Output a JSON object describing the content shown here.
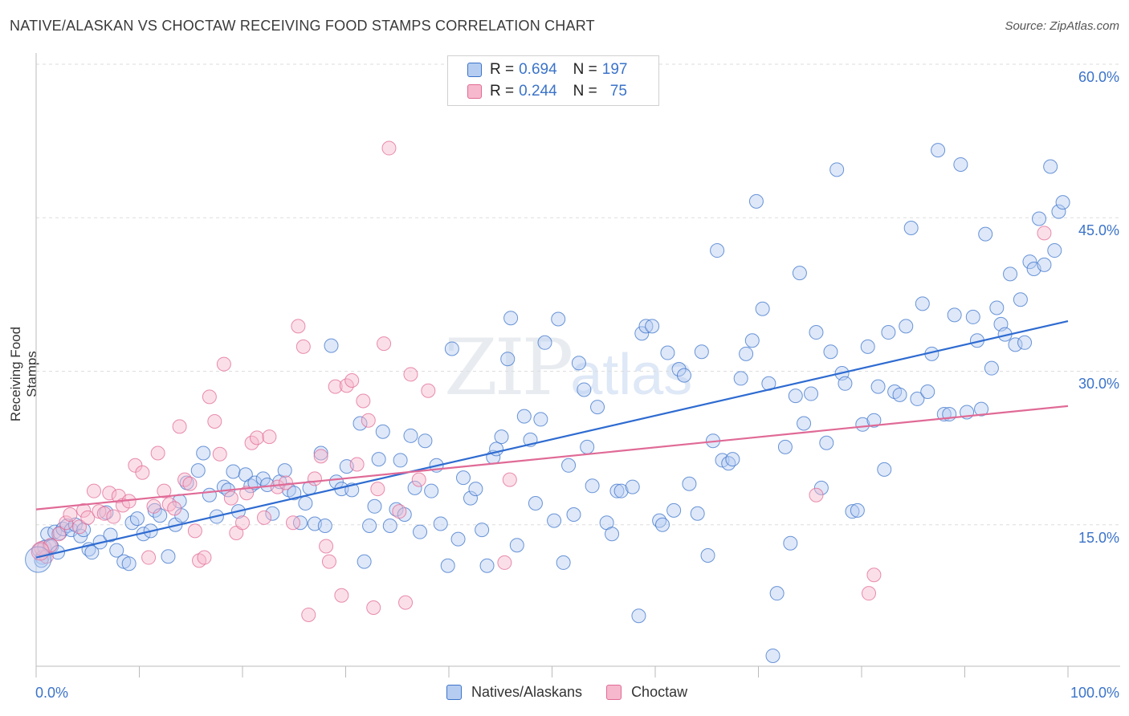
{
  "title": "NATIVE/ALASKAN VS CHOCTAW RECEIVING FOOD STAMPS CORRELATION CHART",
  "source": "Source: ZipAtlas.com",
  "watermark": {
    "zip": "ZIP",
    "atlas": "atlas"
  },
  "colors": {
    "blue": "#3b73c9",
    "blue_fill": "#b6cdf1",
    "pink": "#e06a96",
    "pink_fill": "#f6b8cc",
    "grid": "#dddddd"
  },
  "legend_top": [
    {
      "r_label": "R =",
      "r_value": "0.694",
      "n_label": "N =",
      "n_value": "197"
    },
    {
      "r_label": "R =",
      "r_value": "0.244",
      "n_label": "N =",
      "n_value": "75"
    }
  ],
  "legend_bottom": [
    "Natives/Alaskans",
    "Choctaw"
  ],
  "chart_data": {
    "type": "scatter",
    "title": "NATIVE/ALASKAN VS CHOCTAW RECEIVING FOOD STAMPS CORRELATION CHART",
    "xlabel": "",
    "ylabel": "Receiving Food Stamps",
    "xlim": [
      0,
      100
    ],
    "ylim": [
      0,
      62
    ],
    "x_tick_labels": [
      "0.0%",
      "100.0%"
    ],
    "y_ticks": [
      15,
      30,
      45,
      60
    ],
    "y_tick_labels": [
      "15.0%",
      "30.0%",
      "45.0%",
      "60.0%"
    ],
    "grid": "horizontal dashed",
    "legend_position": "top-center",
    "series": [
      {
        "name": "Natives/Alaskans",
        "r": 0.694,
        "n": 197,
        "trend": {
          "x": [
            0,
            100
          ],
          "y": [
            11.8,
            34.9
          ]
        },
        "points": [
          [
            0.3,
            12.5
          ],
          [
            0.6,
            11.8
          ],
          [
            0.8,
            12.8
          ],
          [
            1.1,
            14.1
          ],
          [
            1.3,
            12.9
          ],
          [
            1.8,
            14.3
          ],
          [
            2.3,
            14.2
          ],
          [
            2.6,
            14.6
          ],
          [
            3.0,
            14.9
          ],
          [
            3.4,
            14.5
          ],
          [
            3.8,
            15.0
          ],
          [
            4.3,
            13.9
          ],
          [
            4.6,
            14.5
          ],
          [
            5.1,
            12.6
          ],
          [
            5.4,
            12.3
          ],
          [
            6.2,
            13.3
          ],
          [
            6.8,
            16.2
          ],
          [
            7.2,
            14.0
          ],
          [
            7.8,
            12.5
          ],
          [
            8.5,
            11.4
          ],
          [
            9.0,
            11.2
          ],
          [
            9.3,
            15.2
          ],
          [
            10.4,
            14.1
          ],
          [
            11.1,
            14.4
          ],
          [
            11.5,
            16.4
          ],
          [
            12.0,
            15.9
          ],
          [
            12.8,
            11.9
          ],
          [
            13.5,
            15.0
          ],
          [
            13.9,
            17.3
          ],
          [
            14.6,
            19.1
          ],
          [
            15.7,
            20.3
          ],
          [
            16.2,
            22.0
          ],
          [
            16.8,
            17.9
          ],
          [
            17.5,
            15.8
          ],
          [
            18.2,
            18.7
          ],
          [
            18.6,
            18.4
          ],
          [
            19.1,
            20.2
          ],
          [
            19.6,
            16.3
          ],
          [
            20.3,
            19.9
          ],
          [
            20.8,
            18.8
          ],
          [
            21.2,
            19.1
          ],
          [
            22.0,
            19.5
          ],
          [
            22.4,
            18.9
          ],
          [
            22.9,
            16.1
          ],
          [
            23.6,
            19.2
          ],
          [
            24.1,
            20.3
          ],
          [
            24.5,
            18.4
          ],
          [
            25.0,
            18.1
          ],
          [
            25.6,
            15.2
          ],
          [
            26.1,
            17.1
          ],
          [
            26.5,
            18.6
          ],
          [
            27.0,
            15.1
          ],
          [
            27.6,
            22.0
          ],
          [
            28.0,
            14.9
          ],
          [
            28.6,
            32.5
          ],
          [
            29.1,
            19.2
          ],
          [
            29.6,
            18.5
          ],
          [
            30.1,
            20.7
          ],
          [
            30.6,
            18.4
          ],
          [
            31.4,
            24.9
          ],
          [
            31.8,
            11.4
          ],
          [
            32.3,
            14.9
          ],
          [
            32.8,
            16.8
          ],
          [
            33.2,
            21.4
          ],
          [
            33.6,
            24.1
          ],
          [
            34.3,
            14.9
          ],
          [
            34.9,
            16.5
          ],
          [
            35.3,
            21.3
          ],
          [
            35.7,
            16.0
          ],
          [
            36.3,
            23.7
          ],
          [
            36.7,
            18.6
          ],
          [
            37.2,
            14.3
          ],
          [
            37.7,
            23.2
          ],
          [
            38.3,
            18.3
          ],
          [
            38.8,
            20.8
          ],
          [
            39.2,
            15.1
          ],
          [
            39.9,
            11.0
          ],
          [
            40.3,
            32.2
          ],
          [
            40.9,
            13.6
          ],
          [
            41.4,
            19.6
          ],
          [
            42.1,
            17.6
          ],
          [
            42.6,
            18.5
          ],
          [
            43.2,
            14.5
          ],
          [
            43.7,
            11.0
          ],
          [
            44.3,
            21.6
          ],
          [
            44.6,
            22.4
          ],
          [
            45.1,
            23.6
          ],
          [
            45.7,
            31.2
          ],
          [
            46.0,
            35.2
          ],
          [
            46.6,
            13.0
          ],
          [
            47.3,
            25.6
          ],
          [
            47.9,
            23.3
          ],
          [
            48.4,
            17.1
          ],
          [
            48.9,
            25.3
          ],
          [
            49.3,
            32.8
          ],
          [
            50.2,
            15.4
          ],
          [
            50.6,
            35.1
          ],
          [
            51.1,
            11.3
          ],
          [
            51.6,
            20.8
          ],
          [
            52.1,
            16.0
          ],
          [
            52.6,
            30.8
          ],
          [
            53.1,
            28.2
          ],
          [
            53.4,
            22.6
          ],
          [
            53.9,
            18.8
          ],
          [
            54.4,
            26.5
          ],
          [
            55.3,
            15.2
          ],
          [
            55.8,
            14.1
          ],
          [
            56.3,
            18.3
          ],
          [
            56.7,
            18.3
          ],
          [
            57.8,
            18.7
          ],
          [
            58.4,
            6.1
          ],
          [
            58.7,
            33.7
          ],
          [
            59.1,
            34.4
          ],
          [
            59.7,
            34.4
          ],
          [
            60.4,
            15.4
          ],
          [
            60.7,
            15.0
          ],
          [
            61.2,
            31.8
          ],
          [
            61.8,
            16.4
          ],
          [
            62.3,
            30.2
          ],
          [
            62.8,
            29.6
          ],
          [
            63.3,
            19.0
          ],
          [
            64.1,
            16.1
          ],
          [
            64.5,
            31.9
          ],
          [
            65.1,
            12.0
          ],
          [
            65.6,
            23.2
          ],
          [
            66.0,
            41.8
          ],
          [
            66.5,
            21.3
          ],
          [
            67.1,
            21.0
          ],
          [
            67.5,
            21.4
          ],
          [
            68.3,
            29.3
          ],
          [
            68.8,
            31.7
          ],
          [
            69.4,
            33.0
          ],
          [
            69.8,
            46.6
          ],
          [
            70.4,
            36.1
          ],
          [
            71.0,
            28.8
          ],
          [
            71.4,
            2.2
          ],
          [
            71.8,
            8.3
          ],
          [
            72.6,
            22.6
          ],
          [
            73.1,
            13.2
          ],
          [
            73.6,
            27.6
          ],
          [
            74.0,
            39.6
          ],
          [
            74.4,
            24.9
          ],
          [
            75.1,
            27.8
          ],
          [
            75.6,
            33.8
          ],
          [
            76.1,
            18.6
          ],
          [
            76.6,
            23.0
          ],
          [
            77.0,
            31.9
          ],
          [
            77.6,
            49.7
          ],
          [
            78.1,
            29.8
          ],
          [
            78.4,
            28.8
          ],
          [
            79.1,
            16.3
          ],
          [
            79.6,
            16.4
          ],
          [
            80.1,
            24.8
          ],
          [
            80.6,
            32.4
          ],
          [
            81.2,
            25.2
          ],
          [
            81.6,
            28.5
          ],
          [
            82.2,
            20.4
          ],
          [
            82.6,
            33.8
          ],
          [
            83.2,
            28.0
          ],
          [
            83.7,
            27.7
          ],
          [
            84.3,
            34.4
          ],
          [
            84.8,
            44.0
          ],
          [
            85.4,
            27.3
          ],
          [
            85.9,
            36.6
          ],
          [
            86.4,
            28.0
          ],
          [
            86.8,
            31.7
          ],
          [
            87.4,
            51.6
          ],
          [
            88.0,
            25.8
          ],
          [
            88.5,
            25.8
          ],
          [
            89.0,
            35.5
          ],
          [
            89.6,
            50.2
          ],
          [
            90.2,
            26.0
          ],
          [
            90.8,
            35.3
          ],
          [
            91.2,
            33.0
          ],
          [
            91.6,
            26.3
          ],
          [
            92.0,
            43.4
          ],
          [
            92.6,
            30.3
          ],
          [
            93.1,
            36.2
          ],
          [
            93.5,
            34.6
          ],
          [
            93.9,
            33.6
          ],
          [
            94.4,
            39.5
          ],
          [
            94.9,
            32.6
          ],
          [
            95.4,
            37.0
          ],
          [
            95.8,
            32.8
          ],
          [
            96.3,
            40.7
          ],
          [
            96.7,
            40.0
          ],
          [
            97.2,
            44.9
          ],
          [
            97.7,
            40.4
          ],
          [
            98.3,
            50.0
          ],
          [
            98.7,
            41.8
          ],
          [
            99.1,
            45.6
          ],
          [
            99.5,
            46.5
          ],
          [
            0.5,
            11.5
          ],
          [
            1.5,
            12.9
          ],
          [
            2.1,
            12.3
          ],
          [
            9.8,
            15.6
          ],
          [
            14.1,
            15.9
          ]
        ]
      },
      {
        "name": "Choctaw",
        "r": 0.244,
        "n": 75,
        "trend": {
          "x": [
            0,
            100
          ],
          "y": [
            16.5,
            26.6
          ]
        },
        "points": [
          [
            0.5,
            12.7
          ],
          [
            1.0,
            11.9
          ],
          [
            1.4,
            13.0
          ],
          [
            2.2,
            14.1
          ],
          [
            2.9,
            15.2
          ],
          [
            3.3,
            16.0
          ],
          [
            4.2,
            14.8
          ],
          [
            4.6,
            16.4
          ],
          [
            5.0,
            15.7
          ],
          [
            5.6,
            18.3
          ],
          [
            6.1,
            16.3
          ],
          [
            6.6,
            16.1
          ],
          [
            7.1,
            18.1
          ],
          [
            7.5,
            15.8
          ],
          [
            8.0,
            17.8
          ],
          [
            8.4,
            16.9
          ],
          [
            9.0,
            17.3
          ],
          [
            9.6,
            20.8
          ],
          [
            10.3,
            20.1
          ],
          [
            10.9,
            11.8
          ],
          [
            11.4,
            16.8
          ],
          [
            11.8,
            22.0
          ],
          [
            12.4,
            18.3
          ],
          [
            12.9,
            17.0
          ],
          [
            13.4,
            16.6
          ],
          [
            13.9,
            24.6
          ],
          [
            14.4,
            19.4
          ],
          [
            14.9,
            19.0
          ],
          [
            15.4,
            14.4
          ],
          [
            15.8,
            11.5
          ],
          [
            16.3,
            11.8
          ],
          [
            16.8,
            27.5
          ],
          [
            17.3,
            25.1
          ],
          [
            17.8,
            21.9
          ],
          [
            18.2,
            30.7
          ],
          [
            18.9,
            17.6
          ],
          [
            19.4,
            14.2
          ],
          [
            20.0,
            15.2
          ],
          [
            20.4,
            18.1
          ],
          [
            20.9,
            23.0
          ],
          [
            21.4,
            23.5
          ],
          [
            22.1,
            15.7
          ],
          [
            22.6,
            23.6
          ],
          [
            23.4,
            18.7
          ],
          [
            24.2,
            19.1
          ],
          [
            24.9,
            15.2
          ],
          [
            25.4,
            34.4
          ],
          [
            25.9,
            32.4
          ],
          [
            26.4,
            6.2
          ],
          [
            27.0,
            19.5
          ],
          [
            27.6,
            21.7
          ],
          [
            28.1,
            12.9
          ],
          [
            28.4,
            11.4
          ],
          [
            29.0,
            28.5
          ],
          [
            29.6,
            8.1
          ],
          [
            30.1,
            28.6
          ],
          [
            30.6,
            29.1
          ],
          [
            31.1,
            20.9
          ],
          [
            31.7,
            27.1
          ],
          [
            32.2,
            25.2
          ],
          [
            32.7,
            6.9
          ],
          [
            33.1,
            18.5
          ],
          [
            33.7,
            32.7
          ],
          [
            34.2,
            51.8
          ],
          [
            35.2,
            16.3
          ],
          [
            35.8,
            7.4
          ],
          [
            36.3,
            29.7
          ],
          [
            37.1,
            19.4
          ],
          [
            38.0,
            28.1
          ],
          [
            45.4,
            11.3
          ],
          [
            45.9,
            19.4
          ],
          [
            75.6,
            17.9
          ],
          [
            80.7,
            8.3
          ],
          [
            81.2,
            10.1
          ],
          [
            97.7,
            43.5
          ]
        ]
      }
    ]
  }
}
